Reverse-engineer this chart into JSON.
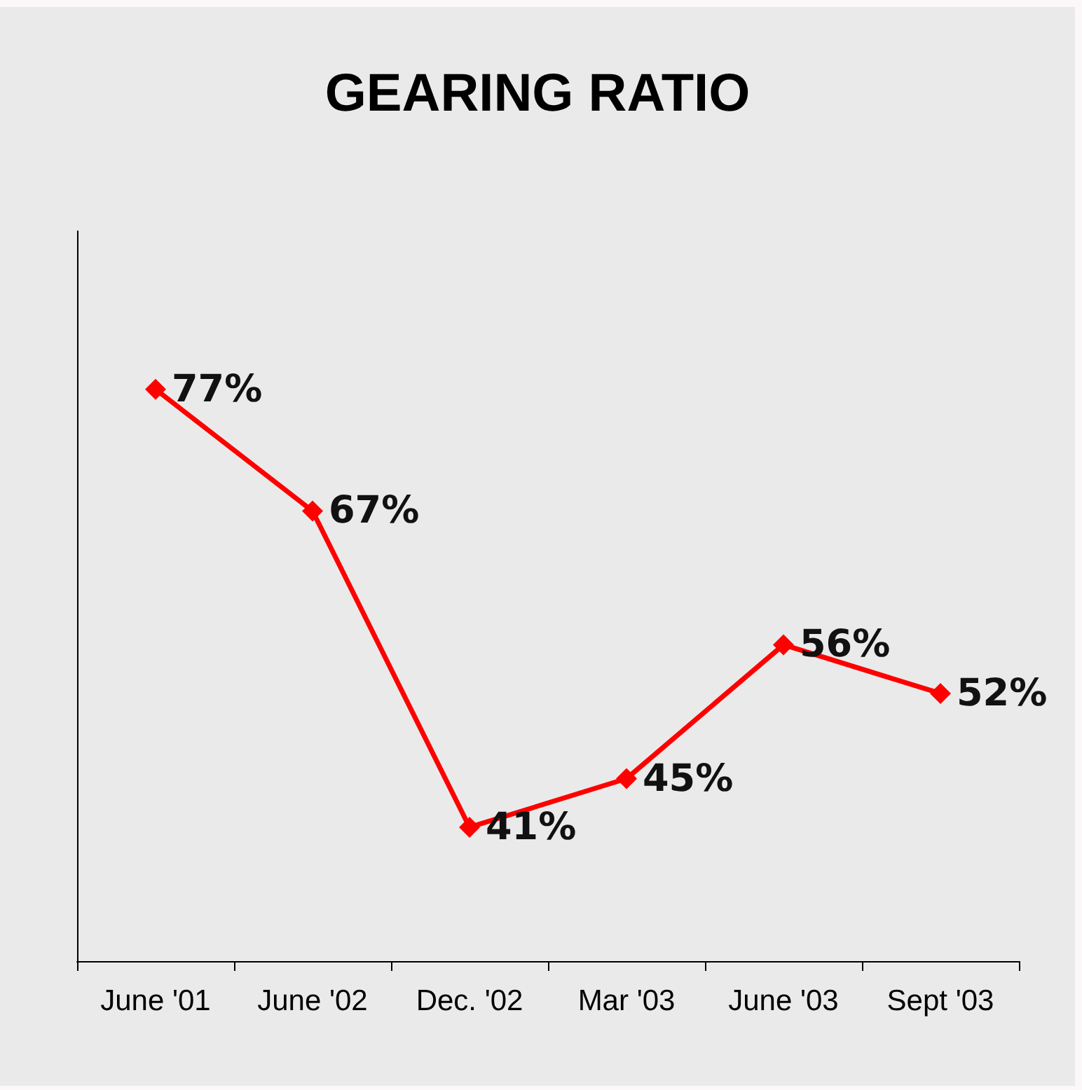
{
  "chart_data": {
    "type": "line",
    "title": "GEARING RATIO",
    "categories": [
      "June '01",
      "June '02",
      "Dec. '02",
      "Mar '03",
      "June '03",
      "Sept '03"
    ],
    "series": [
      {
        "color": "#ff0000",
        "values": [
          77,
          67,
          41,
          45,
          56,
          52
        ],
        "value_labels": [
          "77%",
          "67%",
          "41%",
          "45%",
          "56%",
          "52%"
        ]
      }
    ],
    "ylim": [
      30,
      90
    ],
    "tick_labels": "x",
    "grid": false,
    "marker": "diamond",
    "line_style": "solid"
  }
}
